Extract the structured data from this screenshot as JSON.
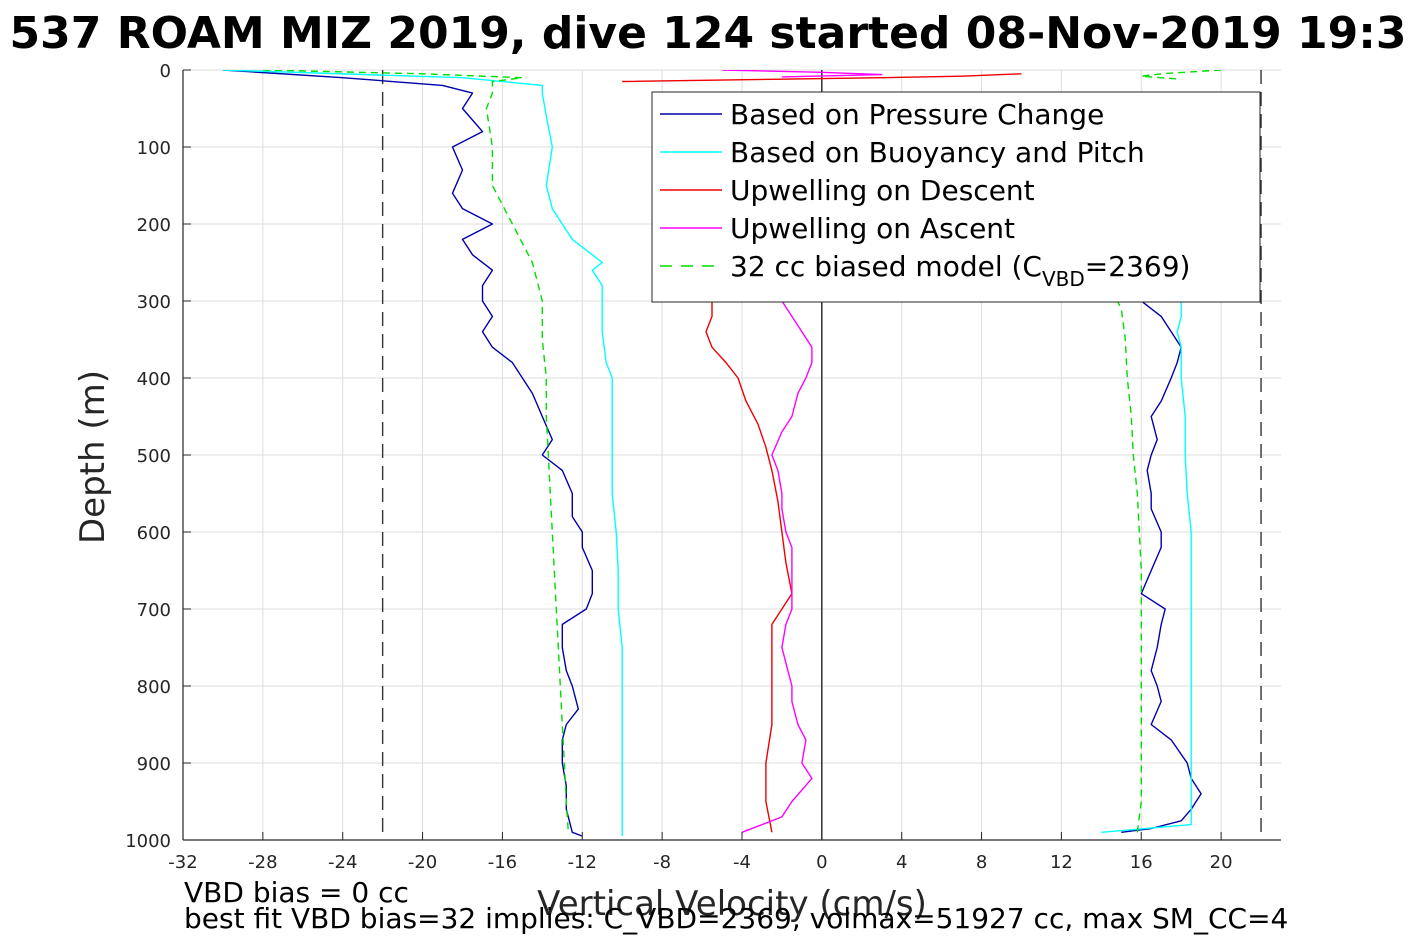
{
  "title": "537 ROAM MIZ 2019, dive 124 started 08-Nov-2019 19:3",
  "footer": {
    "line1": "VBD bias = 0 cc",
    "line2": "best fit VBD bias=32 implies: C_VBD=2369, volmax=51927 cc, max SM_CC=4"
  },
  "chart_data": {
    "type": "line",
    "title": "537 ROAM MIZ 2019, dive 124 started 08-Nov-2019 19:3",
    "xlabel": "Vertical Velocity (cm/s)",
    "ylabel": "Depth (m)",
    "xlim": [
      -32,
      23
    ],
    "ylim": [
      1000,
      0
    ],
    "y_reversed": true,
    "grid": true,
    "x_ticks": [
      -32,
      -28,
      -24,
      -20,
      -16,
      -12,
      -8,
      -4,
      0,
      4,
      8,
      12,
      16,
      20
    ],
    "y_ticks": [
      0,
      100,
      200,
      300,
      400,
      500,
      600,
      700,
      800,
      900,
      1000
    ],
    "reference_lines": {
      "vertical_solid": [
        0
      ],
      "vertical_dashed": [
        -22,
        22
      ]
    },
    "legend": {
      "placement": "top-right",
      "entries": [
        {
          "label": "Based on Pressure Change",
          "color": "#0000aa",
          "style": "solid"
        },
        {
          "label": "Based on Buoyancy and Pitch",
          "color": "#00ffff",
          "style": "solid"
        },
        {
          "label": "Upwelling on Descent",
          "color": "#ee0000",
          "style": "solid"
        },
        {
          "label": "Upwelling on Ascent",
          "color": "#ff00ff",
          "style": "solid"
        },
        {
          "label": "32 cc biased model (C",
          "sub": "VBD",
          "tail": "=2369)",
          "color": "#00dd00",
          "style": "dashed"
        }
      ]
    },
    "series": [
      {
        "name": "Based on Pressure Change",
        "color": "#0000aa",
        "segments": [
          {
            "depth": [
              0,
              10,
              20,
              30,
              50,
              80,
              100,
              130,
              160,
              180,
              200,
              220,
              240,
              260,
              280,
              300,
              320,
              340,
              360,
              380,
              400,
              420,
              450,
              480,
              500,
              520,
              550,
              580,
              600,
              620,
              650,
              680,
              700,
              720,
              750,
              780,
              800,
              830,
              850,
              870,
              900,
              930,
              960,
              990,
              995
            ],
            "velocity": [
              -30,
              -24,
              -19,
              -17.5,
              -18,
              -17,
              -18.5,
              -18,
              -18.5,
              -18,
              -16.5,
              -18,
              -17.5,
              -16.5,
              -17,
              -17,
              -16.5,
              -17,
              -16.5,
              -15.5,
              -15,
              -14.5,
              -14,
              -13.5,
              -14,
              -13,
              -12.5,
              -12.5,
              -12,
              -12,
              -11.5,
              -11.5,
              -11.8,
              -13,
              -13,
              -12.8,
              -12.5,
              -12.2,
              -12.8,
              -13,
              -13,
              -12.8,
              -12.8,
              -12.5,
              -12
            ]
          },
          {
            "depth": [
              990,
              985,
              975,
              960,
              940,
              920,
              900,
              870,
              850,
              820,
              800,
              780,
              750,
              720,
              700,
              680,
              650,
              620,
              600,
              570,
              550,
              520,
              500,
              480,
              450,
              430,
              400,
              380,
              360,
              340,
              320,
              310,
              300
            ],
            "velocity": [
              15,
              16.5,
              18,
              18.5,
              19,
              18.5,
              18.3,
              17.5,
              16.5,
              17,
              16.8,
              16.5,
              16.8,
              17,
              17.2,
              16,
              16.5,
              17,
              17,
              16.5,
              16.5,
              16.3,
              16.5,
              16.8,
              16.5,
              17,
              17.5,
              17.8,
              18,
              17.5,
              17,
              16.5,
              16
            ]
          }
        ]
      },
      {
        "name": "Based on Buoyancy and Pitch",
        "color": "#00ffff",
        "segments": [
          {
            "depth": [
              0,
              10,
              20,
              30,
              60,
              100,
              150,
              180,
              200,
              220,
              240,
              250,
              260,
              280,
              300,
              340,
              380,
              400,
              450,
              500,
              550,
              600,
              650,
              700,
              750,
              800,
              850,
              900,
              950,
              995
            ],
            "velocity": [
              -30,
              -18,
              -14,
              -14,
              -13.8,
              -13.5,
              -13.8,
              -13.5,
              -13,
              -12.5,
              -11.5,
              -11,
              -11.5,
              -11,
              -11,
              -11,
              -10.8,
              -10.5,
              -10.5,
              -10.5,
              -10.5,
              -10.3,
              -10.2,
              -10.2,
              -10,
              -10,
              -10,
              -10,
              -10,
              -10
            ]
          },
          {
            "depth": [
              990,
              980,
              950,
              900,
              850,
              800,
              750,
              700,
              650,
              600,
              550,
              500,
              450,
              400,
              380,
              360,
              340,
              320,
              300
            ],
            "velocity": [
              14,
              18.5,
              18.5,
              18.5,
              18.5,
              18.5,
              18.5,
              18.5,
              18.5,
              18.5,
              18.3,
              18.2,
              18.2,
              18,
              18,
              18,
              17.8,
              18,
              18
            ]
          }
        ]
      },
      {
        "name": "Upwelling on Descent",
        "color": "#ee0000",
        "segments": [
          {
            "depth": [
              300,
              320,
              340,
              360,
              380,
              400,
              430,
              460,
              490,
              520,
              560,
              600,
              640,
              680,
              720,
              760,
              800,
              850,
              900,
              950,
              990
            ],
            "velocity": [
              -5.5,
              -5.5,
              -5.8,
              -5.5,
              -4.8,
              -4.2,
              -3.8,
              -3.2,
              -2.8,
              -2.5,
              -2.2,
              -2,
              -1.8,
              -1.5,
              -2.5,
              -2.5,
              -2.5,
              -2.5,
              -2.8,
              -2.8,
              -2.5
            ]
          },
          {
            "depth": [
              5,
              8,
              10,
              12,
              15
            ],
            "velocity": [
              10,
              7,
              3,
              -2,
              -10
            ]
          }
        ]
      },
      {
        "name": "Upwelling on Ascent",
        "color": "#ff00ff",
        "segments": [
          {
            "depth": [
              990,
              970,
              950,
              920,
              900,
              870,
              850,
              820,
              800,
              770,
              750,
              720,
              700,
              670,
              650,
              620,
              600,
              570,
              550,
              520,
              500,
              470,
              450,
              420,
              400,
              380,
              360,
              340,
              320,
              300
            ],
            "velocity": [
              -4,
              -2,
              -1.5,
              -0.5,
              -1,
              -0.8,
              -1.2,
              -1.5,
              -1.5,
              -1.8,
              -2,
              -1.8,
              -1.5,
              -1.5,
              -1.5,
              -1.5,
              -1.8,
              -2,
              -2,
              -2.2,
              -2.5,
              -2,
              -1.5,
              -1.2,
              -0.8,
              -0.5,
              -0.5,
              -1,
              -1.5,
              -2
            ]
          },
          {
            "depth": [
              0,
              3,
              6,
              9
            ],
            "velocity": [
              -5,
              0,
              3,
              -2
            ]
          }
        ]
      },
      {
        "name": "32 cc biased model (CVBD=2369)",
        "color": "#00dd00",
        "dashed": true,
        "segments": [
          {
            "depth": [
              0,
              5,
              10,
              15,
              30,
              50,
              100,
              150,
              200,
              250,
              300,
              350,
              400,
              450,
              500,
              550,
              600,
              650,
              700,
              750,
              800,
              850,
              900,
              950,
              990
            ],
            "velocity": [
              -28,
              -20,
              -15,
              -16.5,
              -16.5,
              -16.8,
              -16.5,
              -16.5,
              -15.5,
              -14.5,
              -14,
              -14,
              -13.8,
              -13.8,
              -13.7,
              -13.6,
              -13.5,
              -13.4,
              -13.3,
              -13.2,
              -13.1,
              -13,
              -12.9,
              -12.8,
              -12.7
            ]
          },
          {
            "depth": [
              990,
              950,
              900,
              850,
              800,
              750,
              700,
              650,
              600,
              550,
              500,
              450,
              400,
              350,
              310,
              300
            ],
            "velocity": [
              15.8,
              16,
              16,
              16,
              16,
              16,
              16,
              16,
              15.9,
              15.8,
              15.6,
              15.5,
              15.3,
              15.2,
              15,
              14.8
            ]
          },
          {
            "depth": [
              0,
              5,
              8,
              12
            ],
            "velocity": [
              20,
              17,
              16,
              18
            ]
          }
        ]
      }
    ]
  }
}
